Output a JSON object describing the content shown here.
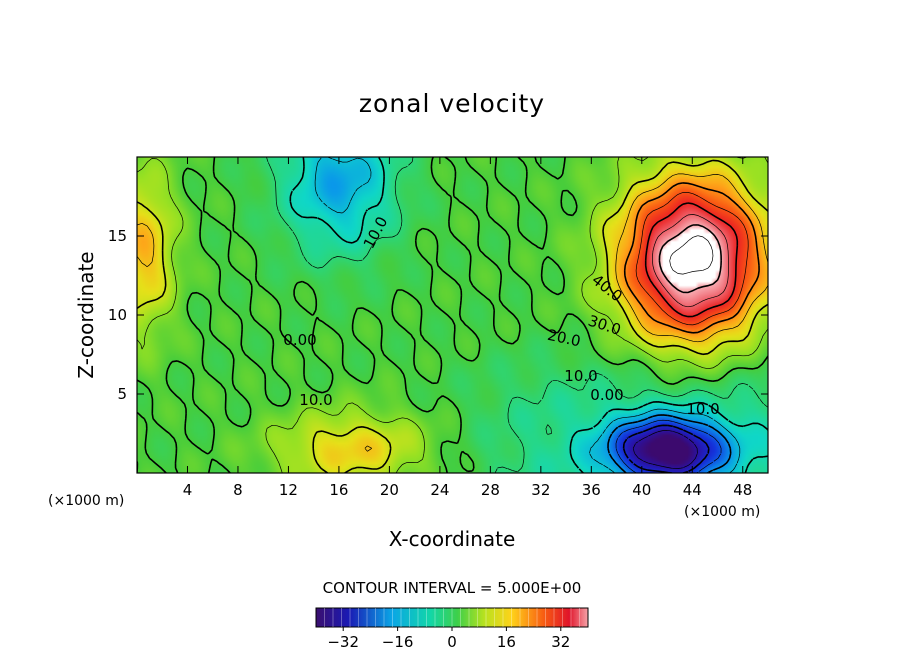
{
  "chart_data": {
    "type": "heatmap",
    "subtype": "filled-contour",
    "title": "zonal velocity",
    "xlabel": "X-coordinate",
    "ylabel": "Z-coordinate",
    "x_unit": "(×1000 m)",
    "y_unit": "(×1000 m)",
    "xlim": [
      0,
      50
    ],
    "ylim": [
      0,
      20
    ],
    "x_ticks": [
      4,
      8,
      12,
      16,
      20,
      24,
      28,
      32,
      36,
      40,
      44,
      48
    ],
    "y_ticks": [
      5,
      10,
      15
    ],
    "contour_interval_text": "CONTOUR INTERVAL = 5.000E+00",
    "contour_labels": [
      "10.0",
      "0.00",
      "10.0",
      "40.0",
      "30.0",
      "20.0",
      "10.0",
      "0.00",
      "10.0"
    ],
    "colorbar": {
      "range": [
        -40,
        40
      ],
      "ticks": [
        -32,
        -16,
        0,
        16,
        32
      ],
      "tick_labels": [
        "−32",
        "−16",
        "0",
        "16",
        "32"
      ]
    },
    "field_features": [
      {
        "name": "negative core",
        "x": 42,
        "z": 1.5,
        "value": -38
      },
      {
        "name": "negative core",
        "x": 16,
        "z": 18.5,
        "value": -18
      },
      {
        "name": "positive core",
        "x": 44,
        "z": 13.5,
        "value": 48
      },
      {
        "name": "positive core",
        "x": 17,
        "z": 1.5,
        "value": 14
      },
      {
        "name": "positive core",
        "x": 0.5,
        "z": 14,
        "value": 16
      }
    ],
    "grid": false,
    "legend": "bottom"
  }
}
